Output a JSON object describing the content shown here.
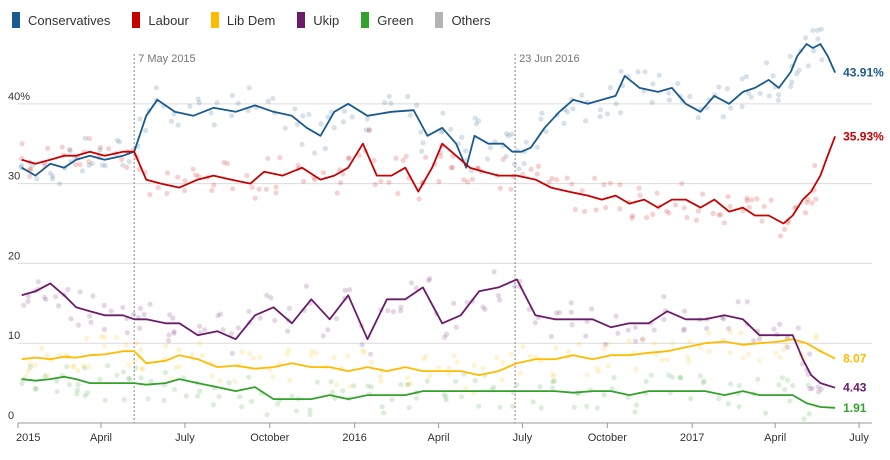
{
  "chart_data": {
    "type": "line",
    "title": "",
    "xlabel": "",
    "ylabel": "",
    "ylim": [
      0,
      48
    ],
    "y_ticks": [
      {
        "value": 0,
        "label": "0"
      },
      {
        "value": 10,
        "label": "10"
      },
      {
        "value": 20,
        "label": "20"
      },
      {
        "value": 30,
        "label": "30"
      },
      {
        "value": 40,
        "label": "40%"
      }
    ],
    "x_ticks": [
      {
        "date": "2015-01-01",
        "label": "2015"
      },
      {
        "date": "2015-04-01",
        "label": "April"
      },
      {
        "date": "2015-07-01",
        "label": "July"
      },
      {
        "date": "2015-10-01",
        "label": "October"
      },
      {
        "date": "2016-01-01",
        "label": "2016"
      },
      {
        "date": "2016-04-01",
        "label": "April"
      },
      {
        "date": "2016-07-01",
        "label": "July"
      },
      {
        "date": "2016-10-01",
        "label": "October"
      },
      {
        "date": "2017-01-01",
        "label": "2017"
      },
      {
        "date": "2017-04-01",
        "label": "April"
      },
      {
        "date": "2017-07-01",
        "label": "July"
      }
    ],
    "x_range": [
      "2015-01-01",
      "2017-07-15"
    ],
    "events": [
      {
        "date": "2015-05-07",
        "label": "7 May 2015"
      },
      {
        "date": "2016-06-23",
        "label": "23 Jun 2016"
      }
    ],
    "grid": true,
    "legend_position": "top-left",
    "series": [
      {
        "name": "Conservatives",
        "color": "#1a5a8c",
        "end_label": "43.91%",
        "points": [
          [
            "2015-01-05",
            32
          ],
          [
            "2015-01-20",
            31
          ],
          [
            "2015-02-05",
            32.5
          ],
          [
            "2015-02-20",
            32
          ],
          [
            "2015-03-05",
            33
          ],
          [
            "2015-03-20",
            33.5
          ],
          [
            "2015-04-05",
            33
          ],
          [
            "2015-04-25",
            33.5
          ],
          [
            "2015-05-07",
            34
          ],
          [
            "2015-05-20",
            38.5
          ],
          [
            "2015-06-01",
            40.5
          ],
          [
            "2015-06-20",
            39
          ],
          [
            "2015-07-10",
            38.5
          ],
          [
            "2015-08-01",
            39.5
          ],
          [
            "2015-08-25",
            39
          ],
          [
            "2015-09-15",
            39.8
          ],
          [
            "2015-10-05",
            39
          ],
          [
            "2015-10-25",
            38.5
          ],
          [
            "2015-11-10",
            37
          ],
          [
            "2015-11-25",
            36
          ],
          [
            "2015-12-10",
            39
          ],
          [
            "2015-12-25",
            40
          ],
          [
            "2016-01-15",
            38.5
          ],
          [
            "2016-02-10",
            39
          ],
          [
            "2016-03-05",
            39.2
          ],
          [
            "2016-03-20",
            36
          ],
          [
            "2016-04-05",
            37
          ],
          [
            "2016-04-20",
            35
          ],
          [
            "2016-05-01",
            32
          ],
          [
            "2016-05-10",
            36
          ],
          [
            "2016-05-25",
            35
          ],
          [
            "2016-06-10",
            35
          ],
          [
            "2016-06-20",
            34
          ],
          [
            "2016-06-30",
            34
          ],
          [
            "2016-07-10",
            34.5
          ],
          [
            "2016-07-25",
            37
          ],
          [
            "2016-08-10",
            39
          ],
          [
            "2016-08-25",
            40.5
          ],
          [
            "2016-09-10",
            40
          ],
          [
            "2016-09-25",
            40.5
          ],
          [
            "2016-10-10",
            41
          ],
          [
            "2016-10-20",
            43.5
          ],
          [
            "2016-11-05",
            42
          ],
          [
            "2016-11-25",
            41.5
          ],
          [
            "2016-12-10",
            42
          ],
          [
            "2016-12-25",
            40
          ],
          [
            "2017-01-10",
            39
          ],
          [
            "2017-01-25",
            41
          ],
          [
            "2017-02-10",
            40
          ],
          [
            "2017-02-25",
            41.5
          ],
          [
            "2017-03-10",
            42
          ],
          [
            "2017-03-25",
            43
          ],
          [
            "2017-04-05",
            42
          ],
          [
            "2017-04-18",
            44
          ],
          [
            "2017-04-25",
            46
          ],
          [
            "2017-05-05",
            47.5
          ],
          [
            "2017-05-12",
            47
          ],
          [
            "2017-05-20",
            47.5
          ],
          [
            "2017-05-28",
            46
          ],
          [
            "2017-06-05",
            43.91
          ]
        ]
      },
      {
        "name": "Labour",
        "color": "#c70000",
        "end_label": "35.93%",
        "points": [
          [
            "2015-01-05",
            33
          ],
          [
            "2015-01-20",
            32.5
          ],
          [
            "2015-02-05",
            33
          ],
          [
            "2015-02-20",
            33.5
          ],
          [
            "2015-03-05",
            33.5
          ],
          [
            "2015-03-20",
            34
          ],
          [
            "2015-04-05",
            33.5
          ],
          [
            "2015-04-25",
            34
          ],
          [
            "2015-05-07",
            34
          ],
          [
            "2015-05-20",
            30.5
          ],
          [
            "2015-06-05",
            30
          ],
          [
            "2015-06-25",
            29.5
          ],
          [
            "2015-07-15",
            30.5
          ],
          [
            "2015-08-01",
            31
          ],
          [
            "2015-08-20",
            30.5
          ],
          [
            "2015-09-10",
            30
          ],
          [
            "2015-09-25",
            31.5
          ],
          [
            "2015-10-15",
            31
          ],
          [
            "2015-11-05",
            32
          ],
          [
            "2015-11-25",
            30.5
          ],
          [
            "2015-12-10",
            31
          ],
          [
            "2015-12-25",
            32
          ],
          [
            "2016-01-10",
            35
          ],
          [
            "2016-01-25",
            31
          ],
          [
            "2016-02-10",
            31
          ],
          [
            "2016-02-25",
            32
          ],
          [
            "2016-03-10",
            29
          ],
          [
            "2016-03-25",
            32
          ],
          [
            "2016-04-05",
            35
          ],
          [
            "2016-04-20",
            33.5
          ],
          [
            "2016-05-05",
            32
          ],
          [
            "2016-05-20",
            31.5
          ],
          [
            "2016-06-05",
            31
          ],
          [
            "2016-06-25",
            31
          ],
          [
            "2016-07-15",
            30.5
          ],
          [
            "2016-08-01",
            29.5
          ],
          [
            "2016-08-20",
            29
          ],
          [
            "2016-09-10",
            28.5
          ],
          [
            "2016-09-25",
            28
          ],
          [
            "2016-10-10",
            28.5
          ],
          [
            "2016-10-25",
            27.5
          ],
          [
            "2016-11-10",
            28
          ],
          [
            "2016-11-25",
            27
          ],
          [
            "2016-12-10",
            28
          ],
          [
            "2016-12-25",
            28
          ],
          [
            "2017-01-10",
            27
          ],
          [
            "2017-01-25",
            28
          ],
          [
            "2017-02-10",
            26.5
          ],
          [
            "2017-02-25",
            27
          ],
          [
            "2017-03-10",
            26
          ],
          [
            "2017-03-25",
            26
          ],
          [
            "2017-04-10",
            25
          ],
          [
            "2017-04-20",
            26
          ],
          [
            "2017-05-01",
            28
          ],
          [
            "2017-05-10",
            29
          ],
          [
            "2017-05-20",
            31
          ],
          [
            "2017-05-28",
            33.5
          ],
          [
            "2017-06-05",
            35.93
          ]
        ]
      },
      {
        "name": "Lib Dem",
        "color": "#ffbb00",
        "end_label": "8.07",
        "points": [
          [
            "2015-01-05",
            8
          ],
          [
            "2015-01-20",
            8.2
          ],
          [
            "2015-02-05",
            8
          ],
          [
            "2015-02-20",
            8.3
          ],
          [
            "2015-03-05",
            8.2
          ],
          [
            "2015-03-20",
            8.5
          ],
          [
            "2015-04-05",
            8.6
          ],
          [
            "2015-04-25",
            9
          ],
          [
            "2015-05-07",
            9
          ],
          [
            "2015-05-20",
            7.5
          ],
          [
            "2015-06-10",
            7.8
          ],
          [
            "2015-06-25",
            8.5
          ],
          [
            "2015-07-15",
            8
          ],
          [
            "2015-08-05",
            7
          ],
          [
            "2015-08-25",
            7.2
          ],
          [
            "2015-09-15",
            6.8
          ],
          [
            "2015-10-05",
            7
          ],
          [
            "2015-10-25",
            7.5
          ],
          [
            "2015-11-15",
            7
          ],
          [
            "2015-12-05",
            7
          ],
          [
            "2015-12-25",
            6.5
          ],
          [
            "2016-01-15",
            7
          ],
          [
            "2016-02-05",
            6.5
          ],
          [
            "2016-02-25",
            7
          ],
          [
            "2016-03-15",
            6.5
          ],
          [
            "2016-04-05",
            6.5
          ],
          [
            "2016-04-25",
            6.5
          ],
          [
            "2016-05-15",
            6
          ],
          [
            "2016-06-05",
            6.5
          ],
          [
            "2016-06-25",
            7.5
          ],
          [
            "2016-07-15",
            8
          ],
          [
            "2016-08-05",
            8
          ],
          [
            "2016-08-25",
            8.5
          ],
          [
            "2016-09-15",
            8
          ],
          [
            "2016-10-05",
            8.5
          ],
          [
            "2016-10-25",
            8.5
          ],
          [
            "2016-11-15",
            8.8
          ],
          [
            "2016-12-05",
            9
          ],
          [
            "2016-12-25",
            9.5
          ],
          [
            "2017-01-15",
            10
          ],
          [
            "2017-02-05",
            10.2
          ],
          [
            "2017-02-25",
            9.8
          ],
          [
            "2017-03-15",
            10
          ],
          [
            "2017-04-05",
            10.2
          ],
          [
            "2017-04-20",
            10.5
          ],
          [
            "2017-05-05",
            10
          ],
          [
            "2017-05-20",
            9
          ],
          [
            "2017-06-05",
            8.07
          ]
        ]
      },
      {
        "name": "Ukip",
        "color": "#6a1b6a",
        "end_label": "4.43",
        "points": [
          [
            "2015-01-05",
            16
          ],
          [
            "2015-01-20",
            16.5
          ],
          [
            "2015-02-05",
            17.5
          ],
          [
            "2015-02-20",
            16
          ],
          [
            "2015-03-05",
            14.5
          ],
          [
            "2015-03-20",
            14
          ],
          [
            "2015-04-05",
            13.5
          ],
          [
            "2015-04-25",
            13.5
          ],
          [
            "2015-05-07",
            13
          ],
          [
            "2015-05-20",
            13
          ],
          [
            "2015-06-10",
            12.5
          ],
          [
            "2015-06-25",
            12.5
          ],
          [
            "2015-07-15",
            11
          ],
          [
            "2015-08-05",
            11.5
          ],
          [
            "2015-08-25",
            10.5
          ],
          [
            "2015-09-15",
            13.5
          ],
          [
            "2015-10-05",
            14.5
          ],
          [
            "2015-10-25",
            12.5
          ],
          [
            "2015-11-15",
            15.5
          ],
          [
            "2015-12-05",
            13
          ],
          [
            "2015-12-25",
            16
          ],
          [
            "2016-01-15",
            10.5
          ],
          [
            "2016-02-05",
            15.5
          ],
          [
            "2016-02-25",
            15.5
          ],
          [
            "2016-03-15",
            17
          ],
          [
            "2016-04-05",
            12.5
          ],
          [
            "2016-04-25",
            13.5
          ],
          [
            "2016-05-15",
            16.5
          ],
          [
            "2016-06-05",
            17
          ],
          [
            "2016-06-25",
            18
          ],
          [
            "2016-07-15",
            13.5
          ],
          [
            "2016-08-05",
            13
          ],
          [
            "2016-08-25",
            13
          ],
          [
            "2016-09-15",
            13
          ],
          [
            "2016-10-05",
            12
          ],
          [
            "2016-10-25",
            12.5
          ],
          [
            "2016-11-15",
            12.5
          ],
          [
            "2016-12-05",
            14
          ],
          [
            "2016-12-25",
            13
          ],
          [
            "2017-01-15",
            13
          ],
          [
            "2017-02-05",
            13.5
          ],
          [
            "2017-02-25",
            13
          ],
          [
            "2017-03-15",
            11
          ],
          [
            "2017-04-05",
            11
          ],
          [
            "2017-04-20",
            11
          ],
          [
            "2017-05-01",
            8
          ],
          [
            "2017-05-10",
            6
          ],
          [
            "2017-05-20",
            5
          ],
          [
            "2017-06-05",
            4.43
          ]
        ]
      },
      {
        "name": "Green",
        "color": "#33a22b",
        "end_label": "1.91",
        "points": [
          [
            "2015-01-05",
            5.5
          ],
          [
            "2015-01-20",
            5.3
          ],
          [
            "2015-02-05",
            5.5
          ],
          [
            "2015-02-20",
            5.8
          ],
          [
            "2015-03-05",
            5.5
          ],
          [
            "2015-03-20",
            5
          ],
          [
            "2015-04-05",
            5
          ],
          [
            "2015-04-25",
            5
          ],
          [
            "2015-05-07",
            5
          ],
          [
            "2015-05-20",
            4.8
          ],
          [
            "2015-06-10",
            5
          ],
          [
            "2015-06-25",
            5.5
          ],
          [
            "2015-07-15",
            5
          ],
          [
            "2015-08-05",
            4.5
          ],
          [
            "2015-08-25",
            4
          ],
          [
            "2015-09-15",
            4.5
          ],
          [
            "2015-10-05",
            3
          ],
          [
            "2015-10-25",
            3
          ],
          [
            "2015-11-15",
            3
          ],
          [
            "2015-12-05",
            3.5
          ],
          [
            "2015-12-25",
            3
          ],
          [
            "2016-01-15",
            3.5
          ],
          [
            "2016-02-05",
            3.5
          ],
          [
            "2016-02-25",
            3.5
          ],
          [
            "2016-03-15",
            4
          ],
          [
            "2016-04-05",
            4
          ],
          [
            "2016-04-25",
            4
          ],
          [
            "2016-05-15",
            4
          ],
          [
            "2016-06-05",
            4
          ],
          [
            "2016-06-25",
            4
          ],
          [
            "2016-07-15",
            4
          ],
          [
            "2016-08-05",
            4
          ],
          [
            "2016-08-25",
            3.8
          ],
          [
            "2016-09-15",
            4
          ],
          [
            "2016-10-05",
            4
          ],
          [
            "2016-10-25",
            3.5
          ],
          [
            "2016-11-15",
            4
          ],
          [
            "2016-12-05",
            4
          ],
          [
            "2016-12-25",
            4
          ],
          [
            "2017-01-15",
            4
          ],
          [
            "2017-02-05",
            3.5
          ],
          [
            "2017-02-25",
            4
          ],
          [
            "2017-03-15",
            3.5
          ],
          [
            "2017-04-05",
            3.5
          ],
          [
            "2017-04-20",
            3.5
          ],
          [
            "2017-05-05",
            2.5
          ],
          [
            "2017-05-20",
            2
          ],
          [
            "2017-06-05",
            1.91
          ]
        ]
      },
      {
        "name": "Others",
        "color": "#b3b3b3",
        "end_label": "",
        "points": []
      }
    ]
  }
}
